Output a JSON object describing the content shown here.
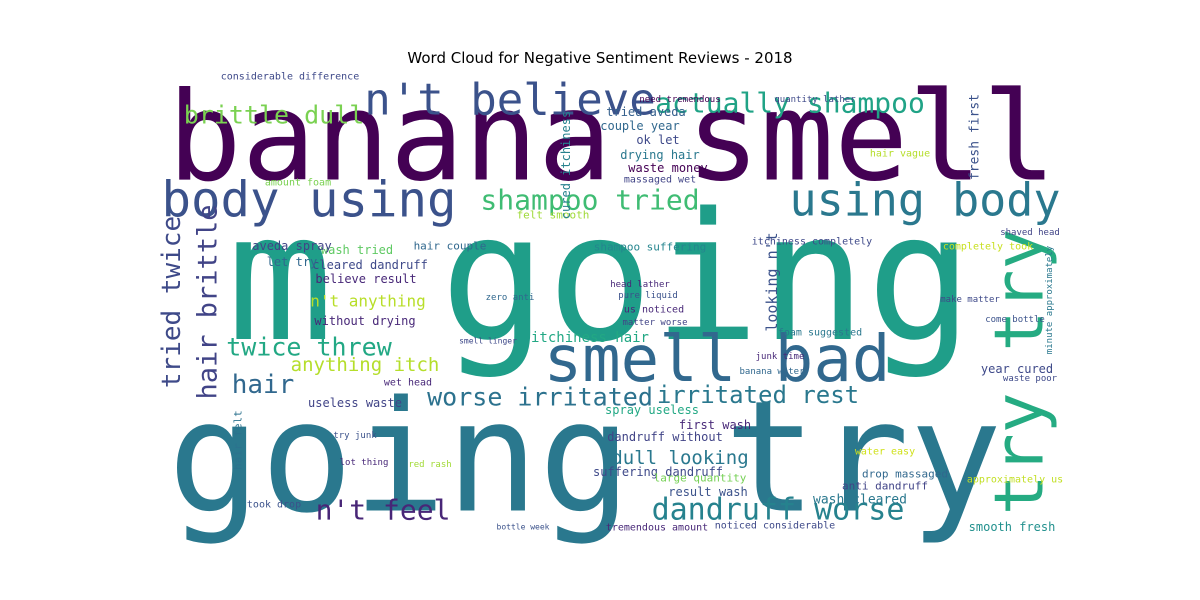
{
  "chart_data": {
    "type": "wordcloud",
    "title": "Word Cloud for Negative Sentiment Reviews - 2018",
    "words": [
      {
        "text": "banana smell",
        "size": 123,
        "color": "#440154"
      },
      {
        "text": "m going",
        "size": 177,
        "color": "#1f9e89"
      },
      {
        "text": "going try",
        "size": 154,
        "color": "#2a788e"
      },
      {
        "text": "smell bad",
        "size": 64,
        "color": "#31688e"
      },
      {
        "text": "try try",
        "size": 68,
        "color": "#25ab82"
      },
      {
        "text": "body using",
        "size": 49,
        "color": "#3b528b"
      },
      {
        "text": "using body",
        "size": 45,
        "color": "#2a788e"
      },
      {
        "text": "n't believe",
        "size": 44,
        "color": "#3b528b"
      },
      {
        "text": "actually shampoo",
        "size": 28,
        "color": "#20a386"
      },
      {
        "text": "brittle dull",
        "size": 25,
        "color": "#7ad151"
      },
      {
        "text": "shampoo tried",
        "size": 28,
        "color": "#3fbc73"
      },
      {
        "text": "twice threw",
        "size": 25,
        "color": "#22a884"
      },
      {
        "text": "tried twice",
        "size": 26,
        "color": "#3e4a89"
      },
      {
        "text": "hair brittle",
        "size": 27,
        "color": "#414487"
      },
      {
        "text": "hair",
        "size": 26,
        "color": "#31688e"
      },
      {
        "text": "worse irritated",
        "size": 25,
        "color": "#2c728e"
      },
      {
        "text": "irritated rest",
        "size": 24,
        "color": "#2a788e"
      },
      {
        "text": "n't feel",
        "size": 28,
        "color": "#482677"
      },
      {
        "text": "dandruff worse",
        "size": 30,
        "color": "#26828e"
      },
      {
        "text": "dull looking",
        "size": 19,
        "color": "#2a788e"
      },
      {
        "text": "anything itch",
        "size": 19,
        "color": "#b5de2b"
      },
      {
        "text": "n't anything",
        "size": 16,
        "color": "#b8de29"
      },
      {
        "text": "cleared dandruff",
        "size": 12,
        "color": "#3e4989"
      },
      {
        "text": "believe result",
        "size": 12,
        "color": "#482878"
      },
      {
        "text": "looking n't",
        "size": 15,
        "color": "#3b528b"
      },
      {
        "text": "fresh first",
        "size": 13,
        "color": "#3b528b"
      },
      {
        "text": "hair couple",
        "size": 11,
        "color": "#31688e"
      },
      {
        "text": "wash tried",
        "size": 12,
        "color": "#5ec962"
      },
      {
        "text": "felt smooth",
        "size": 11,
        "color": "#a0da39"
      },
      {
        "text": "shampoo suffering",
        "size": 11,
        "color": "#25858e"
      },
      {
        "text": "aveda spray",
        "size": 12,
        "color": "#414487"
      },
      {
        "text": "let try",
        "size": 12,
        "color": "#31688e"
      },
      {
        "text": "without drying",
        "size": 12,
        "color": "#482878"
      },
      {
        "text": "itchiness hair",
        "size": 14,
        "color": "#22a884"
      },
      {
        "text": "cured itchiness",
        "size": 12,
        "color": "#26828e"
      },
      {
        "text": "tried aveda",
        "size": 12,
        "color": "#35608d"
      },
      {
        "text": "couple year",
        "size": 12,
        "color": "#31688e"
      },
      {
        "text": "ok let",
        "size": 12,
        "color": "#3e4989"
      },
      {
        "text": "drying hair",
        "size": 12,
        "color": "#2a788e"
      },
      {
        "text": "waste money",
        "size": 12,
        "color": "#440154"
      },
      {
        "text": "massaged wet",
        "size": 10,
        "color": "#414487"
      },
      {
        "text": "useless waste",
        "size": 12,
        "color": "#414487"
      },
      {
        "text": "first wash",
        "size": 12,
        "color": "#482878"
      },
      {
        "text": "spray useless",
        "size": 12,
        "color": "#22a884"
      },
      {
        "text": "dandruff without",
        "size": 12,
        "color": "#414487"
      },
      {
        "text": "suffering dandruff",
        "size": 12,
        "color": "#3e4989"
      },
      {
        "text": "large quantity",
        "size": 11,
        "color": "#75d054"
      },
      {
        "text": "result wash",
        "size": 12,
        "color": "#3b528b"
      },
      {
        "text": "wash cleared",
        "size": 13,
        "color": "#2a788e"
      },
      {
        "text": "anti dandruff",
        "size": 11,
        "color": "#414487"
      },
      {
        "text": "drop massaged",
        "size": 11,
        "color": "#31688e"
      },
      {
        "text": "smooth fresh",
        "size": 12,
        "color": "#21908d"
      },
      {
        "text": "year cured",
        "size": 12,
        "color": "#3e4989"
      },
      {
        "text": "considerable difference",
        "size": 10,
        "color": "#3e4989"
      },
      {
        "text": "hair felt",
        "size": 11,
        "color": "#2c728e"
      },
      {
        "text": "took drop",
        "size": 10,
        "color": "#3b528b"
      },
      {
        "text": "tremendous amount",
        "size": 10,
        "color": "#482878"
      },
      {
        "text": "noticed considerable",
        "size": 10,
        "color": "#3e4989"
      },
      {
        "text": "amount foam",
        "size": 10,
        "color": "#7ad151"
      },
      {
        "text": "completely took",
        "size": 10,
        "color": "#c8e020"
      },
      {
        "text": "itchiness completely",
        "size": 10,
        "color": "#3e4989"
      },
      {
        "text": "head lather",
        "size": 9,
        "color": "#482878"
      },
      {
        "text": "zero anti",
        "size": 9,
        "color": "#31688e"
      },
      {
        "text": "matter worse",
        "size": 9,
        "color": "#414487"
      },
      {
        "text": "foam suggested",
        "size": 10,
        "color": "#2a788e"
      },
      {
        "text": "hair vague",
        "size": 10,
        "color": "#b5de2b"
      },
      {
        "text": "water easy",
        "size": 10,
        "color": "#d0e11c"
      },
      {
        "text": "approximately us",
        "size": 10,
        "color": "#c2df23"
      },
      {
        "text": "pure liquid",
        "size": 9,
        "color": "#3b528b"
      },
      {
        "text": "us noticed",
        "size": 10,
        "color": "#482878"
      },
      {
        "text": "make matter",
        "size": 9,
        "color": "#3e4989"
      },
      {
        "text": "come bottle",
        "size": 9,
        "color": "#3b528b"
      },
      {
        "text": "waste poor",
        "size": 9,
        "color": "#3e4989"
      },
      {
        "text": "shaved head",
        "size": 9,
        "color": "#414487"
      },
      {
        "text": "minute approximately",
        "size": 9,
        "color": "#2a788e"
      },
      {
        "text": "junk time",
        "size": 9,
        "color": "#482878"
      },
      {
        "text": "banana water",
        "size": 9,
        "color": "#31688e"
      },
      {
        "text": "need tremendous",
        "size": 9,
        "color": "#440154"
      },
      {
        "text": "quantity lather",
        "size": 9,
        "color": "#3e4989"
      },
      {
        "text": "wet head",
        "size": 10,
        "color": "#482878"
      },
      {
        "text": "lot thing",
        "size": 9,
        "color": "#482878"
      },
      {
        "text": "try junk",
        "size": 9,
        "color": "#3b528b"
      },
      {
        "text": "red rash",
        "size": 9,
        "color": "#a2da37"
      },
      {
        "text": "bottle week",
        "size": 8,
        "color": "#3b528b"
      },
      {
        "text": "smell linger",
        "size": 8,
        "color": "#3e4989"
      }
    ]
  }
}
